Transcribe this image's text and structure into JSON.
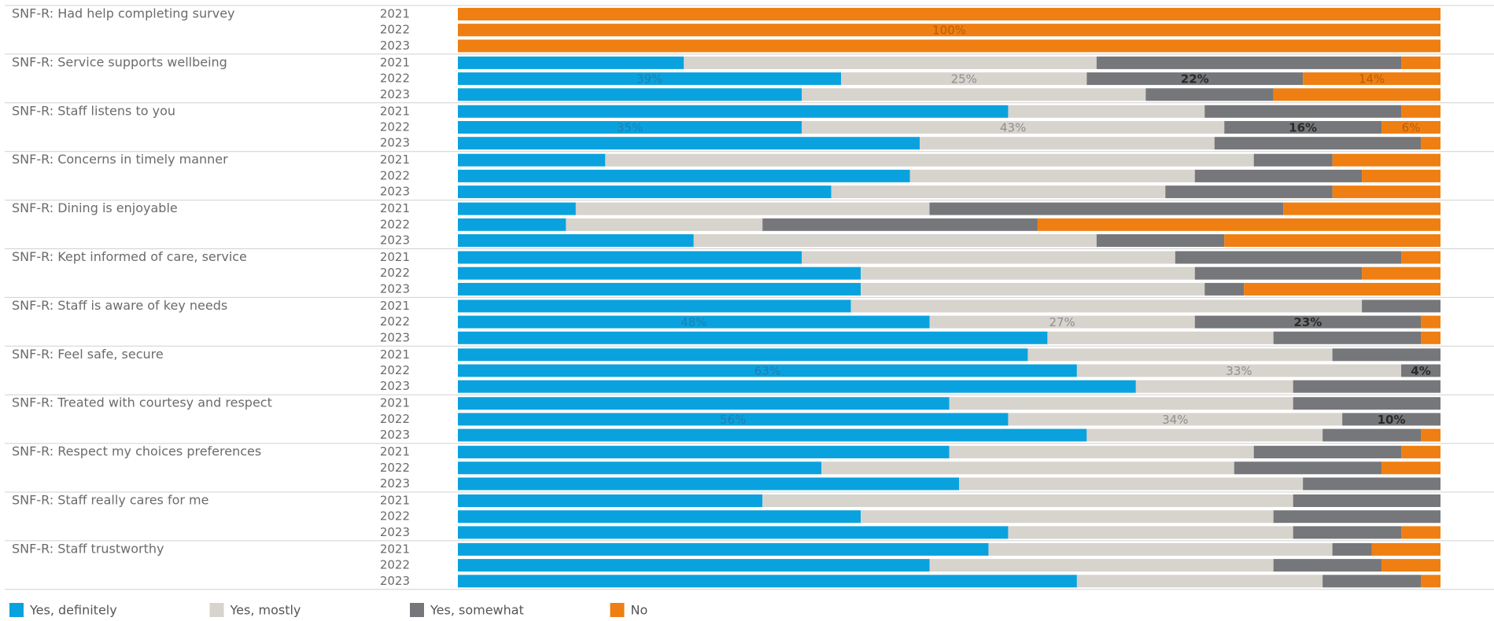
{
  "chart_data": {
    "type": "stacked-bar-horizontal",
    "groups": [
      "SNF-R: Had help completing survey",
      "SNF-R: Service supports wellbeing",
      "SNF-R: Staff listens to you",
      "SNF-R: Concerns in timely manner",
      "SNF-R: Dining is enjoyable",
      "SNF-R: Kept informed of care, service",
      "SNF-R: Staff is aware of key needs",
      "SNF-R: Feel safe, secure",
      "SNF-R: Treated with courtesy and respect",
      "SNF-R: Respect my choices preferences",
      "SNF-R: Staff really cares for me",
      "SNF-R: Staff trustworthy"
    ],
    "categories": [
      "2021",
      "2022",
      "2023",
      "2021",
      "2022",
      "2023",
      "2021",
      "2022",
      "2023",
      "2021",
      "2022",
      "2023",
      "2021",
      "2022",
      "2023",
      "2021",
      "2022",
      "2023",
      "2021",
      "2022",
      "2023",
      "2021",
      "2022",
      "2023",
      "2021",
      "2022",
      "2023",
      "2021",
      "2022",
      "2023",
      "2021",
      "2022",
      "2023",
      "2021",
      "2022",
      "2023"
    ],
    "xlim": [
      0,
      100
    ],
    "series": [
      {
        "name": "Yes, definitely",
        "color": "#0aa2de",
        "label_color": "#1f7fb0",
        "values": [
          0,
          0,
          0,
          23,
          39,
          35,
          56,
          35,
          47,
          15,
          46,
          38,
          12,
          11,
          24,
          35,
          41,
          41,
          40,
          48,
          60,
          58,
          63,
          69,
          50,
          56,
          64,
          50,
          37,
          51,
          31,
          41,
          56,
          54,
          48,
          63
        ],
        "value_labels": [
          null,
          null,
          null,
          null,
          "39%",
          null,
          null,
          "35%",
          null,
          null,
          null,
          null,
          null,
          null,
          null,
          null,
          null,
          null,
          null,
          "48%",
          null,
          null,
          "63%",
          null,
          null,
          "56%",
          null,
          null,
          null,
          null,
          null,
          null,
          null,
          null,
          null,
          null
        ]
      },
      {
        "name": "Yes, mostly",
        "color": "#d7d3cd",
        "label_color": "#8f8f8f",
        "values": [
          0,
          0,
          0,
          42,
          25,
          35,
          20,
          43,
          30,
          66,
          29,
          34,
          36,
          20,
          41,
          38,
          34,
          35,
          52,
          27,
          23,
          31,
          33,
          16,
          35,
          34,
          24,
          31,
          42,
          35,
          54,
          42,
          29,
          35,
          35,
          25
        ],
        "value_labels": [
          null,
          null,
          null,
          null,
          "25%",
          null,
          null,
          "43%",
          null,
          null,
          null,
          null,
          null,
          null,
          null,
          null,
          null,
          null,
          null,
          "27%",
          null,
          null,
          "33%",
          null,
          null,
          "34%",
          null,
          null,
          null,
          null,
          null,
          null,
          null,
          null,
          null,
          null
        ]
      },
      {
        "name": "Yes, somewhat",
        "color": "#76777a",
        "label_color": "#2a2a2a",
        "values": [
          0,
          0,
          0,
          31,
          22,
          13,
          20,
          16,
          21,
          8,
          17,
          17,
          36,
          28,
          13,
          23,
          17,
          4,
          8,
          23,
          15,
          11,
          4,
          15,
          15,
          10,
          10,
          15,
          15,
          14,
          15,
          17,
          11,
          4,
          11,
          10
        ],
        "value_labels": [
          null,
          null,
          null,
          null,
          "22%",
          null,
          null,
          "16%",
          null,
          null,
          null,
          null,
          null,
          null,
          null,
          null,
          null,
          null,
          null,
          "23%",
          null,
          null,
          "4%",
          null,
          null,
          "10%",
          null,
          null,
          null,
          null,
          null,
          null,
          null,
          null,
          null,
          null
        ]
      },
      {
        "name": "No",
        "color": "#ef7f12",
        "label_color": "#b85e08",
        "values": [
          100,
          100,
          100,
          4,
          14,
          17,
          4,
          6,
          2,
          11,
          8,
          11,
          16,
          41,
          22,
          4,
          8,
          20,
          0,
          2,
          2,
          0,
          0,
          0,
          0,
          0,
          2,
          4,
          6,
          0,
          0,
          0,
          4,
          7,
          6,
          2
        ],
        "value_labels": [
          null,
          "100%",
          null,
          null,
          "14%",
          null,
          null,
          "6%",
          null,
          null,
          null,
          null,
          null,
          null,
          null,
          null,
          null,
          null,
          null,
          null,
          null,
          null,
          null,
          null,
          null,
          null,
          null,
          null,
          null,
          null,
          null,
          null,
          null,
          null,
          null,
          null
        ]
      }
    ]
  }
}
